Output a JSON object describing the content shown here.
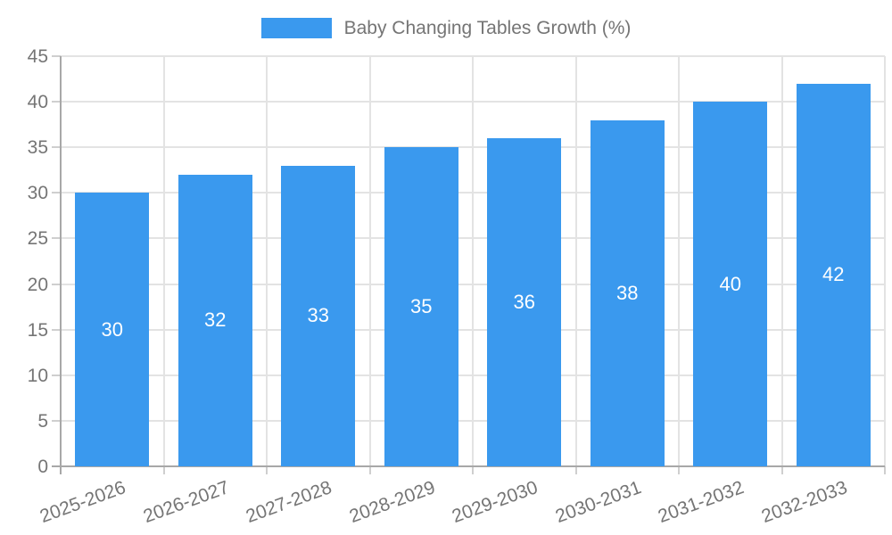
{
  "legend": {
    "label": "Baby Changing Tables Growth (%)"
  },
  "chart_data": {
    "type": "bar",
    "title": "Baby Changing Tables Growth (%)",
    "categories": [
      "2025-2026",
      "2026-2027",
      "2027-2028",
      "2028-2029",
      "2029-2030",
      "2030-2031",
      "2031-2032",
      "2032-2033"
    ],
    "values": [
      30,
      32,
      33,
      35,
      36,
      38,
      40,
      42
    ],
    "value_labels": [
      "30",
      "32",
      "33",
      "35",
      "36",
      "38",
      "40",
      "42"
    ],
    "xlabel": "",
    "ylabel": "",
    "ylim": [
      0,
      45
    ],
    "yticks": [
      0,
      5,
      10,
      15,
      20,
      25,
      30,
      35,
      40,
      45
    ],
    "grid": "on",
    "legend_position": "top",
    "x_label_rotation_deg": -20,
    "colors": {
      "bar": "#3a99ee",
      "axis_text": "#757575",
      "gridline": "#e3e3e3",
      "axis_line": "#a8a8a8",
      "value_label": "#ffffff",
      "background": "#ffffff"
    }
  }
}
